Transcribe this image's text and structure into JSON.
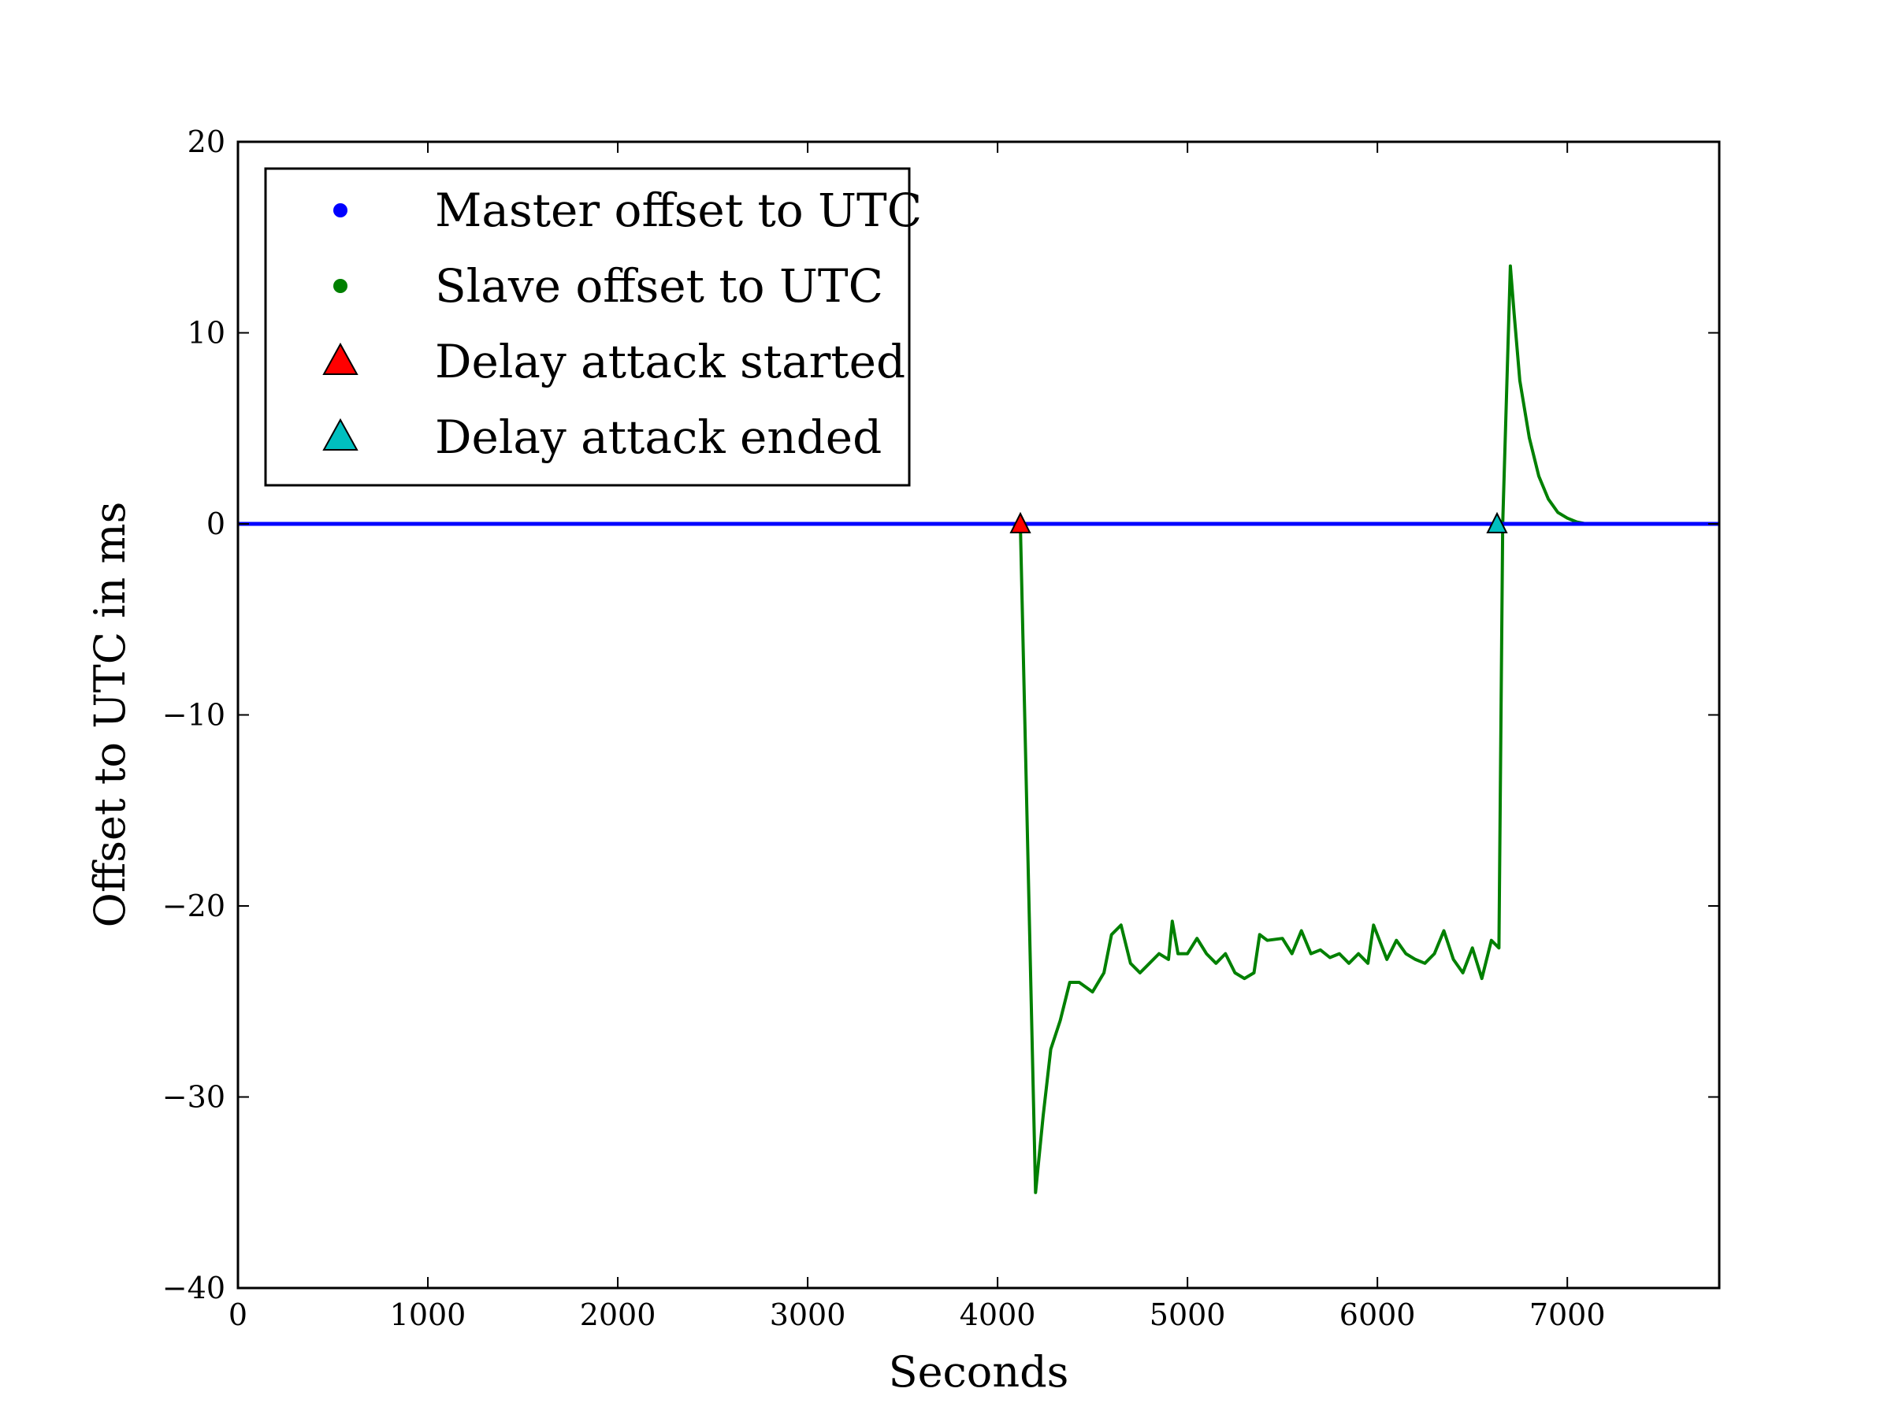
{
  "chart_data": {
    "type": "line",
    "title": "",
    "xlabel": "Seconds",
    "ylabel": "Offset to UTC in ms",
    "xlim": [
      0,
      7800
    ],
    "ylim": [
      -40,
      20
    ],
    "xticks": [
      0,
      1000,
      2000,
      3000,
      4000,
      5000,
      6000,
      7000
    ],
    "xtick_labels": [
      "0",
      "1000",
      "2000",
      "3000",
      "4000",
      "5000",
      "6000",
      "7000"
    ],
    "yticks": [
      20,
      10,
      0,
      -10,
      -20,
      -30,
      -40
    ],
    "ytick_labels": [
      "20",
      "10",
      "0",
      "−10",
      "−20",
      "−30",
      "−40"
    ],
    "grid": false,
    "legend_position": "top-left",
    "series": [
      {
        "name": "Master offset to UTC",
        "color": "#0000ff",
        "marker": "dot",
        "x": [
          0,
          1000,
          2000,
          3000,
          4000,
          5000,
          6000,
          7000,
          7800
        ],
        "y": [
          0,
          0,
          0,
          0,
          0,
          0,
          0,
          0,
          0
        ]
      },
      {
        "name": "Slave offset to UTC",
        "color": "#008000",
        "marker": "dot",
        "x": [
          0,
          1000,
          2000,
          3000,
          4000,
          4120,
          4200,
          4240,
          4280,
          4330,
          4380,
          4430,
          4500,
          4560,
          4600,
          4650,
          4700,
          4750,
          4800,
          4850,
          4900,
          4920,
          4950,
          5000,
          5050,
          5100,
          5150,
          5200,
          5250,
          5300,
          5350,
          5380,
          5420,
          5500,
          5550,
          5600,
          5650,
          5700,
          5750,
          5800,
          5850,
          5900,
          5950,
          5980,
          6050,
          6100,
          6150,
          6200,
          6250,
          6300,
          6350,
          6400,
          6450,
          6500,
          6550,
          6600,
          6640,
          6660,
          6700,
          6720,
          6750,
          6800,
          6850,
          6900,
          6950,
          7000,
          7050,
          7100,
          7200,
          7800
        ],
        "y": [
          0,
          0,
          0,
          0,
          0,
          0,
          -35,
          -31,
          -27.5,
          -26,
          -24,
          -24,
          -24.5,
          -23.5,
          -21.5,
          -21,
          -23,
          -23.5,
          -23,
          -22.5,
          -22.8,
          -20.8,
          -22.5,
          -22.5,
          -21.7,
          -22.5,
          -23,
          -22.5,
          -23.5,
          -23.8,
          -23.5,
          -21.5,
          -21.8,
          -21.7,
          -22.5,
          -21.3,
          -22.5,
          -22.3,
          -22.7,
          -22.5,
          -23,
          -22.5,
          -23,
          -21,
          -22.8,
          -21.8,
          -22.5,
          -22.8,
          -23,
          -22.5,
          -21.3,
          -22.8,
          -23.5,
          -22.2,
          -23.8,
          -21.8,
          -22.2,
          0,
          13.5,
          11,
          7.5,
          4.5,
          2.5,
          1.3,
          0.6,
          0.3,
          0.1,
          0,
          0,
          0
        ]
      }
    ],
    "markers": [
      {
        "name": "Delay attack started",
        "color": "#ff0000",
        "shape": "triangle",
        "x": 4120,
        "y": 0
      },
      {
        "name": "Delay attack ended",
        "color": "#00bfbf",
        "shape": "triangle",
        "x": 6630,
        "y": 0
      }
    ]
  }
}
